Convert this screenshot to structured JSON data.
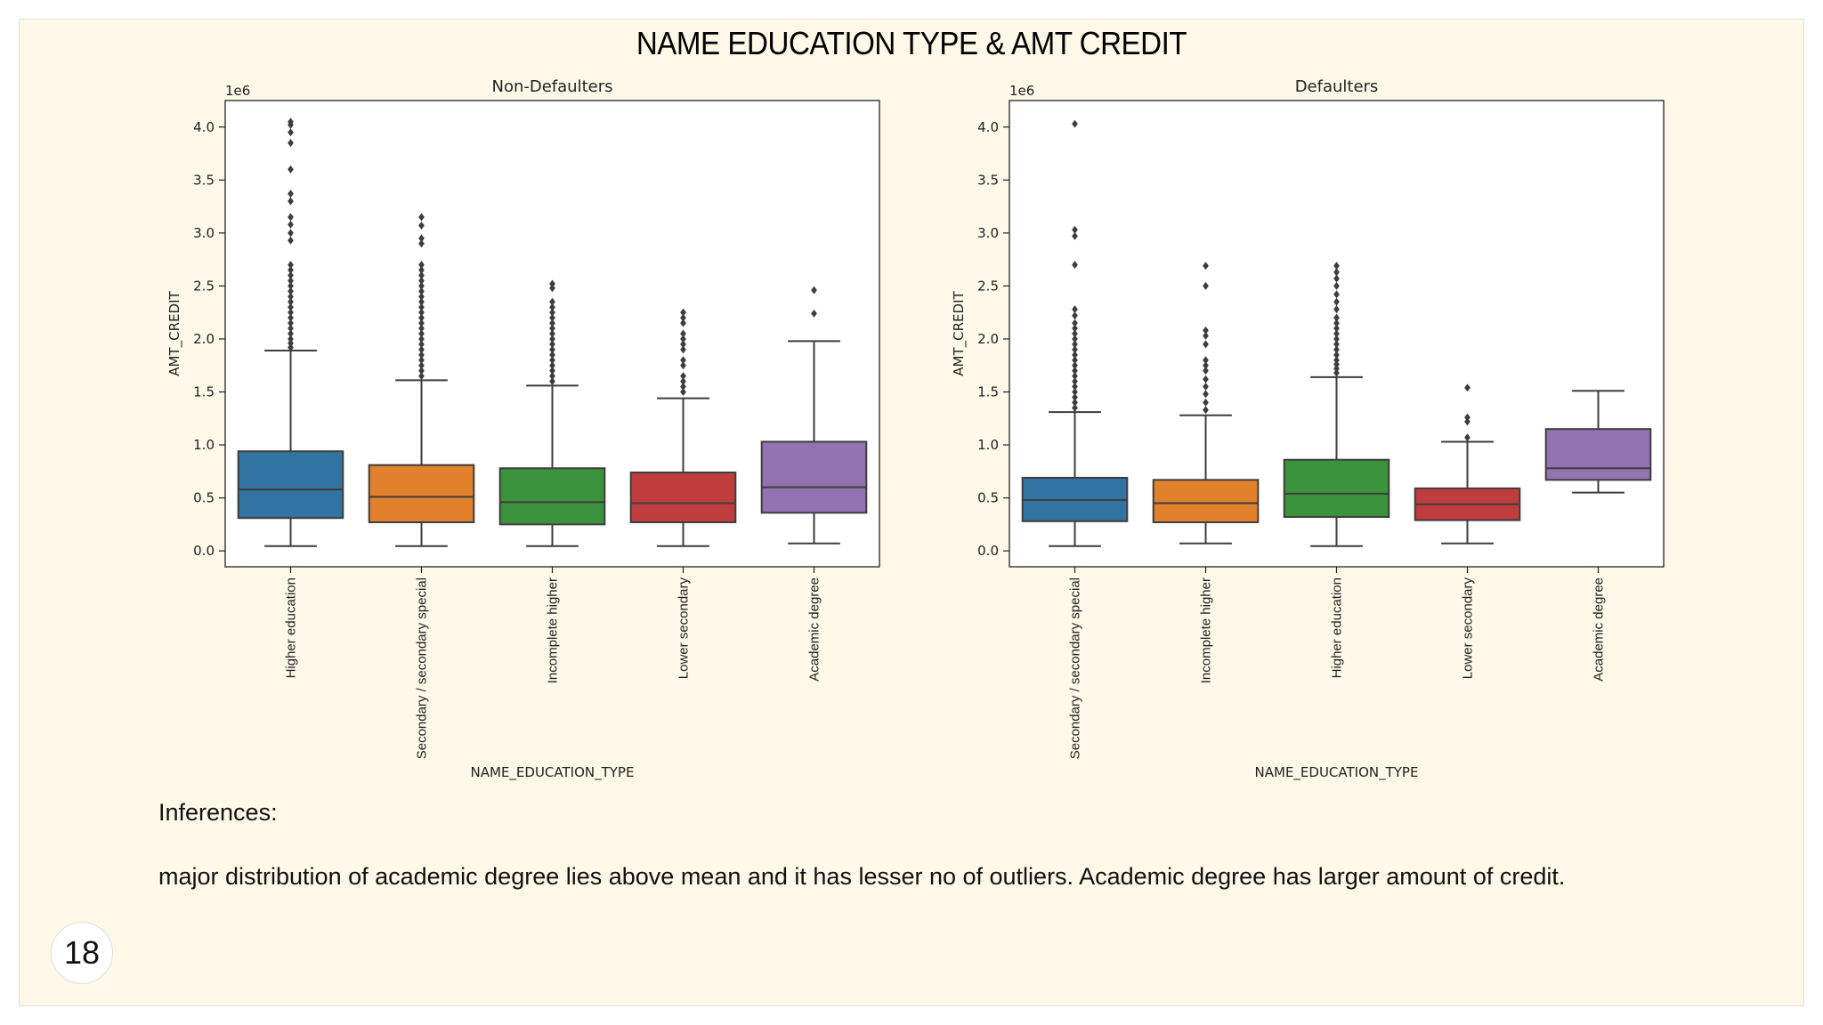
{
  "slide": {
    "title": "NAME EDUCATION TYPE & AMT CREDIT",
    "inference_heading": "Inferences:",
    "inference_text": "major distribution of academic degree lies above mean and it has lesser no of outliers. Academic degree has larger amount of credit.",
    "page_number": "18"
  },
  "chart_data": [
    {
      "type": "box",
      "title": "Non-Defaulters",
      "xlabel": "NAME_EDUCATION_TYPE",
      "ylabel": "AMT_CREDIT",
      "y_multiplier_label": "1e6",
      "ylim": [
        -0.15,
        4.25
      ],
      "yticks": [
        0.0,
        0.5,
        1.0,
        1.5,
        2.0,
        2.5,
        3.0,
        3.5,
        4.0
      ],
      "grid": false,
      "series": [
        {
          "category": "Higher education",
          "color": "#3274a1",
          "whisker_low": 0.045,
          "q1": 0.31,
          "median": 0.58,
          "q3": 0.94,
          "whisker_high": 1.89,
          "outliers": [
            1.92,
            1.96,
            2.0,
            2.05,
            2.1,
            2.15,
            2.2,
            2.25,
            2.3,
            2.35,
            2.4,
            2.45,
            2.5,
            2.55,
            2.6,
            2.65,
            2.7,
            2.93,
            3.0,
            3.08,
            3.15,
            3.3,
            3.37,
            3.6,
            3.85,
            3.95,
            4.02,
            4.05
          ]
        },
        {
          "category": "Secondary / secondary special",
          "color": "#e1812c",
          "whisker_low": 0.045,
          "q1": 0.27,
          "median": 0.51,
          "q3": 0.81,
          "whisker_high": 1.61,
          "outliers": [
            1.65,
            1.7,
            1.75,
            1.8,
            1.85,
            1.9,
            1.95,
            2.0,
            2.05,
            2.1,
            2.15,
            2.2,
            2.25,
            2.3,
            2.35,
            2.4,
            2.45,
            2.5,
            2.55,
            2.6,
            2.65,
            2.7,
            2.9,
            2.95,
            3.07,
            3.15
          ]
        },
        {
          "category": "Incomplete higher",
          "color": "#3a923a",
          "whisker_low": 0.045,
          "q1": 0.25,
          "median": 0.46,
          "q3": 0.78,
          "whisker_high": 1.56,
          "outliers": [
            1.6,
            1.65,
            1.7,
            1.75,
            1.8,
            1.85,
            1.9,
            1.95,
            2.0,
            2.05,
            2.1,
            2.15,
            2.2,
            2.25,
            2.3,
            2.35,
            2.48,
            2.52
          ]
        },
        {
          "category": "Lower secondary",
          "color": "#c03d3e",
          "whisker_low": 0.045,
          "q1": 0.27,
          "median": 0.45,
          "q3": 0.74,
          "whisker_high": 1.44,
          "outliers": [
            1.5,
            1.55,
            1.6,
            1.65,
            1.75,
            1.8,
            1.9,
            1.95,
            2.0,
            2.05,
            2.15,
            2.2,
            2.25
          ]
        },
        {
          "category": "Academic degree",
          "color": "#9372b2",
          "whisker_low": 0.07,
          "q1": 0.36,
          "median": 0.6,
          "q3": 1.03,
          "whisker_high": 1.98,
          "outliers": [
            2.24,
            2.46
          ]
        }
      ]
    },
    {
      "type": "box",
      "title": "Defaulters",
      "xlabel": "NAME_EDUCATION_TYPE",
      "ylabel": "AMT_CREDIT",
      "y_multiplier_label": "1e6",
      "ylim": [
        -0.15,
        4.25
      ],
      "yticks": [
        0.0,
        0.5,
        1.0,
        1.5,
        2.0,
        2.5,
        3.0,
        3.5,
        4.0
      ],
      "grid": false,
      "series": [
        {
          "category": "Secondary / secondary special",
          "color": "#3274a1",
          "whisker_low": 0.045,
          "q1": 0.28,
          "median": 0.48,
          "q3": 0.69,
          "whisker_high": 1.31,
          "outliers": [
            1.35,
            1.4,
            1.45,
            1.5,
            1.55,
            1.6,
            1.65,
            1.7,
            1.75,
            1.8,
            1.85,
            1.9,
            1.95,
            2.0,
            2.05,
            2.1,
            2.15,
            2.22,
            2.28,
            2.7,
            2.97,
            3.03,
            4.03
          ]
        },
        {
          "category": "Incomplete higher",
          "color": "#e1812c",
          "whisker_low": 0.07,
          "q1": 0.27,
          "median": 0.45,
          "q3": 0.67,
          "whisker_high": 1.28,
          "outliers": [
            1.33,
            1.4,
            1.48,
            1.55,
            1.62,
            1.7,
            1.75,
            1.8,
            1.95,
            2.03,
            2.08,
            2.5,
            2.69
          ]
        },
        {
          "category": "Higher education",
          "color": "#3a923a",
          "whisker_low": 0.045,
          "q1": 0.32,
          "median": 0.54,
          "q3": 0.86,
          "whisker_high": 1.64,
          "outliers": [
            1.68,
            1.72,
            1.76,
            1.8,
            1.85,
            1.9,
            1.95,
            2.0,
            2.05,
            2.1,
            2.15,
            2.2,
            2.28,
            2.35,
            2.42,
            2.5,
            2.57,
            2.63,
            2.69
          ]
        },
        {
          "category": "Lower secondary",
          "color": "#c03d3e",
          "whisker_low": 0.07,
          "q1": 0.29,
          "median": 0.44,
          "q3": 0.59,
          "whisker_high": 1.03,
          "outliers": [
            1.07,
            1.22,
            1.26,
            1.54
          ]
        },
        {
          "category": "Academic degree",
          "color": "#9372b2",
          "whisker_low": 0.55,
          "q1": 0.67,
          "median": 0.78,
          "q3": 1.15,
          "whisker_high": 1.51,
          "outliers": []
        }
      ]
    }
  ]
}
